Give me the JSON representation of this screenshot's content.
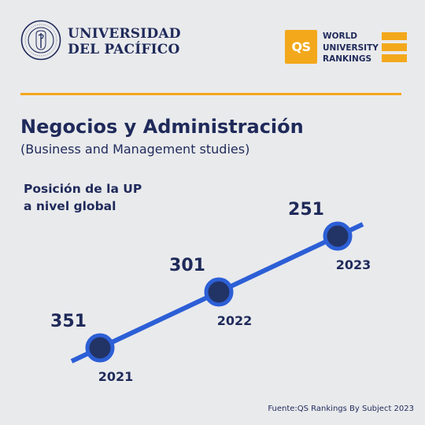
{
  "header": {
    "university_line1": "UNIVERSIDAD",
    "university_line2": "DEL PACÍFICO",
    "seal_text": "UNIVERSIDAD DEL PACÍFICO · LIMA · PERÚ",
    "qs_logo": "QS",
    "qs_line1": "WORLD",
    "qs_line2": "UNIVERSITY",
    "qs_line3": "RANKINGS"
  },
  "title": "Negocios y Administración",
  "subtitle": "(Business and Management studies)",
  "caption_line1": "Posición de la UP",
  "caption_line2": "a nivel global",
  "source": "Fuente:QS Rankings By Subject 2023",
  "colors": {
    "background": "#e9eaec",
    "navy": "#1f2a5a",
    "accent_orange": "#f3a81c",
    "line_blue": "#2c5fd6",
    "marker_fill": "#223366"
  },
  "chart_data": {
    "type": "line",
    "title": "Negocios y Administración",
    "x": [
      "2021",
      "2022",
      "2023"
    ],
    "series": [
      {
        "values": [
          351,
          301,
          251
        ]
      }
    ],
    "y_inverted": true,
    "grid": false,
    "legend": "none"
  }
}
